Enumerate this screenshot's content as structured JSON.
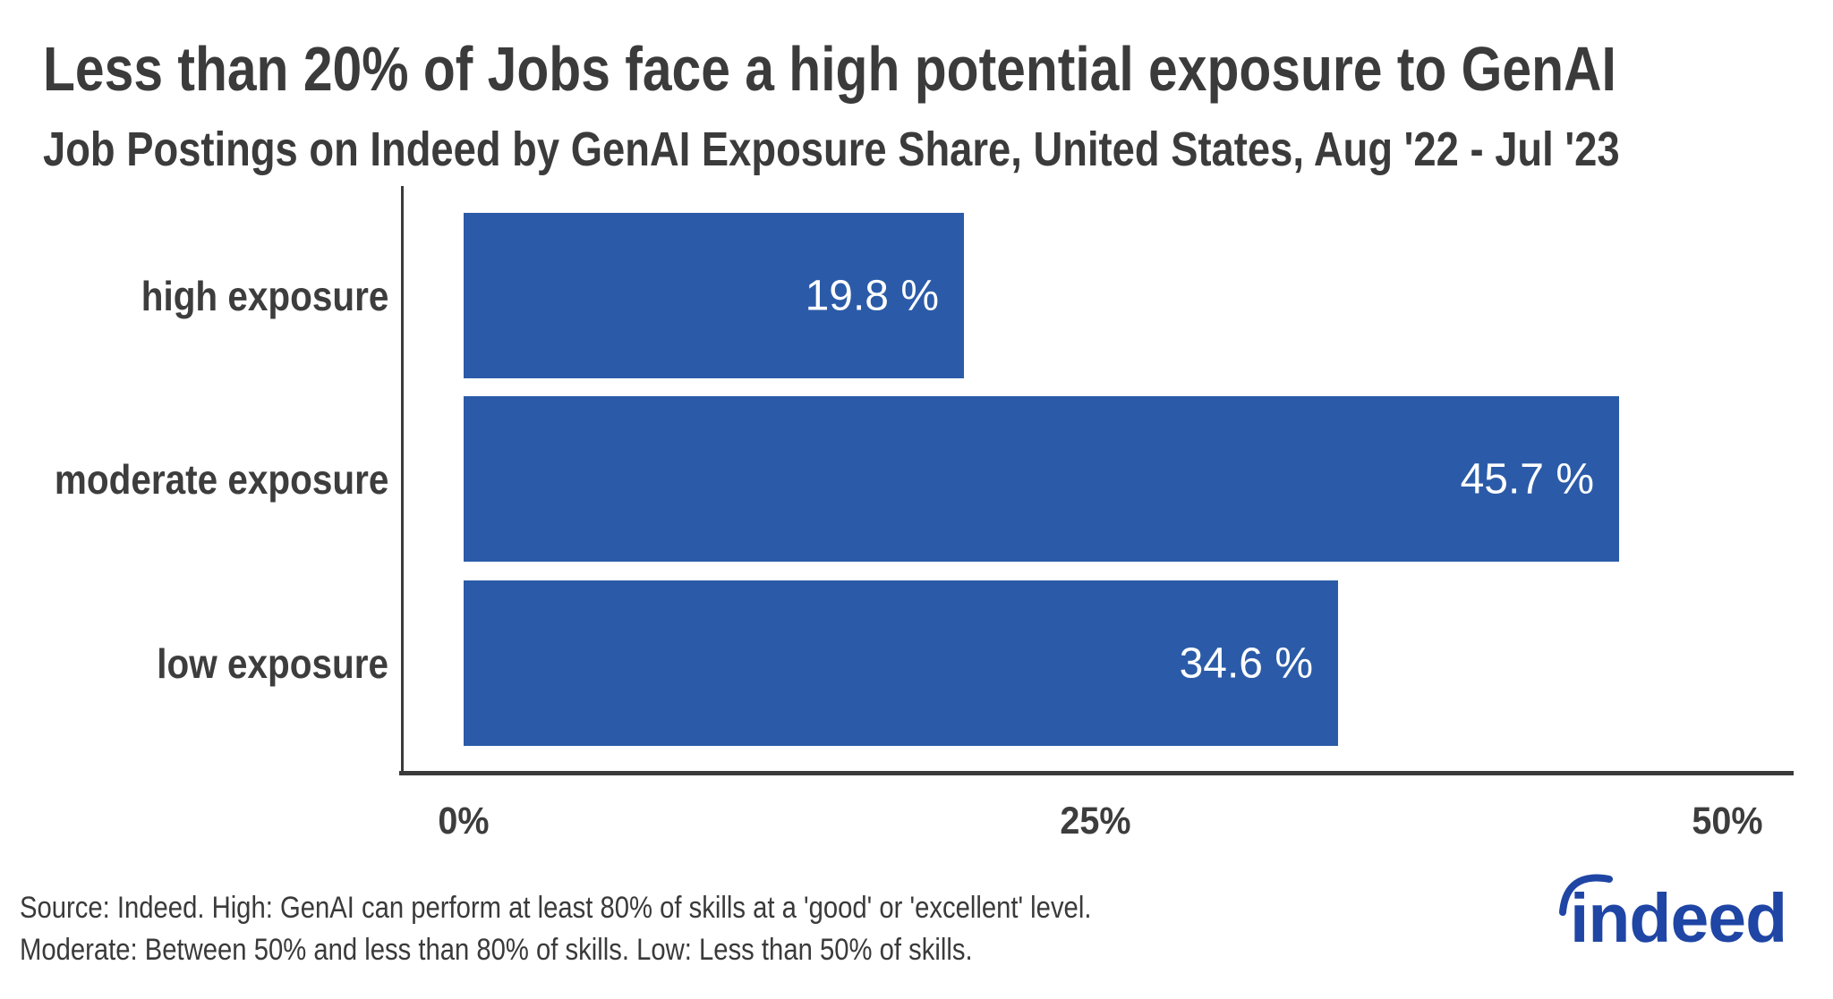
{
  "header": {
    "title": "Less than 20% of Jobs face a high potential exposure to GenAI",
    "subtitle": "Job Postings on Indeed by GenAI Exposure Share, United States, Aug '22 - Jul '23"
  },
  "chart_data": {
    "type": "bar",
    "orientation": "horizontal",
    "title": "Less than 20% of Jobs face a high potential exposure to GenAI",
    "subtitle": "Job Postings on Indeed by GenAI Exposure Share, United States, Aug '22 - Jul '23",
    "categories": [
      "high exposure",
      "moderate exposure",
      "low exposure"
    ],
    "values": [
      19.8,
      45.7,
      34.6
    ],
    "value_labels": [
      "19.8 %",
      "45.7 %",
      "34.6 %"
    ],
    "x_ticks": [
      "0%",
      "25%",
      "50%"
    ],
    "x_tick_values": [
      0,
      25,
      50
    ],
    "xlim": [
      0,
      52.6
    ],
    "xlabel": "",
    "ylabel": "",
    "grid": false,
    "legend": false,
    "bar_label_position": "inside-right"
  },
  "footer": {
    "source_line1": "Source: Indeed. High: GenAI can perform at least 80% of skills at a 'good' or 'excellent' level.",
    "source_line2": "Moderate: Between 50% and less than 80% of skills. Low: Less than 50% of skills."
  },
  "logo": {
    "text": "indeed",
    "swoosh_icon": "arc-swoosh"
  },
  "colors": {
    "bar": "#2b5ba8",
    "axis": "#3a3a3a",
    "title_text": "#3b3b3b",
    "label_text": "#3d3d3d",
    "value_label_text": "#ffffff",
    "logo_blue": "#1f45a5",
    "background": "#ffffff"
  }
}
